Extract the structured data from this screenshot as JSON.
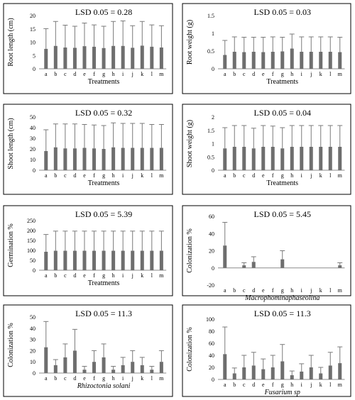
{
  "chart_data": [
    {
      "type": "bar",
      "annotation": "LSD 0.05 = 0.28",
      "ylabel": "Root length (cm)",
      "xlabel": "Treatments",
      "ylim": [
        0,
        20
      ],
      "yticks": [
        "0",
        "5",
        "10",
        "15",
        "20"
      ],
      "categories": [
        "a",
        "b",
        "c",
        "d",
        "e",
        "f",
        "g",
        "h",
        "i",
        "j",
        "k",
        "l",
        "m"
      ],
      "values": [
        7.5,
        8.6,
        8.0,
        7.9,
        8.5,
        8.3,
        7.8,
        8.6,
        8.6,
        7.9,
        8.7,
        8.3,
        8.0
      ],
      "errors": [
        7.6,
        9.2,
        8.4,
        8.1,
        8.7,
        8.2,
        8.2,
        9.2,
        9.4,
        8.3,
        9.1,
        8.2,
        8.2
      ]
    },
    {
      "type": "bar",
      "annotation": "LSD 0.05 = 0.03",
      "ylabel": "Root weight (g)",
      "xlabel": "Treatments",
      "ylim": [
        0,
        1.5
      ],
      "yticks": [
        "0",
        "0.5",
        "1",
        "1.5"
      ],
      "categories": [
        "a",
        "b",
        "c",
        "d",
        "e",
        "f",
        "g",
        "h",
        "i",
        "j",
        "k",
        "l",
        "m"
      ],
      "values": [
        0.39,
        0.48,
        0.47,
        0.48,
        0.47,
        0.48,
        0.49,
        0.57,
        0.48,
        0.48,
        0.48,
        0.48,
        0.47
      ],
      "errors": [
        0.41,
        0.42,
        0.42,
        0.41,
        0.42,
        0.42,
        0.4,
        0.41,
        0.42,
        0.42,
        0.42,
        0.42,
        0.42
      ]
    },
    {
      "type": "bar",
      "annotation": "LSD 0.05 = 0.32",
      "ylabel": "Shoot length (cm)",
      "xlabel": "Treatments",
      "ylim": [
        0,
        50
      ],
      "yticks": [
        "0",
        "10",
        "20",
        "30",
        "40",
        "50"
      ],
      "categories": [
        "a",
        "b",
        "c",
        "d",
        "e",
        "f",
        "g",
        "h",
        "i",
        "j",
        "k",
        "l",
        "m"
      ],
      "values": [
        18,
        21.5,
        20.5,
        20.5,
        21,
        20.5,
        20,
        21.5,
        21,
        21,
        21,
        21,
        21
      ],
      "errors": [
        20,
        22,
        23,
        23,
        22,
        22,
        22,
        23,
        23,
        23,
        23,
        22,
        22
      ]
    },
    {
      "type": "bar",
      "annotation": "LSD 0.05 = 0.04",
      "ylabel": "Shoot weight (g)",
      "xlabel": "Treatments",
      "ylim": [
        0,
        2
      ],
      "yticks": [
        "0",
        "0.5",
        "1",
        "1.5",
        "2"
      ],
      "categories": [
        "a",
        "b",
        "c",
        "d",
        "e",
        "f",
        "g",
        "h",
        "i",
        "j",
        "k",
        "l",
        "m"
      ],
      "values": [
        0.82,
        0.88,
        0.88,
        0.82,
        0.88,
        0.88,
        0.82,
        0.88,
        0.88,
        0.88,
        0.88,
        0.88,
        0.88
      ],
      "errors": [
        0.78,
        0.8,
        0.8,
        0.76,
        0.8,
        0.78,
        0.78,
        0.8,
        0.8,
        0.8,
        0.8,
        0.8,
        0.8
      ]
    },
    {
      "type": "bar",
      "annotation": "LSD 0.05 = 5.39",
      "ylabel": "Germination %",
      "xlabel": "Treatments",
      "ylim": [
        0,
        250
      ],
      "yticks": [
        "0",
        "50",
        "100",
        "150",
        "200",
        "250"
      ],
      "categories": [
        "a",
        "b",
        "c",
        "d",
        "e",
        "f",
        "g",
        "h",
        "i",
        "j",
        "k",
        "l",
        "m"
      ],
      "values": [
        93,
        98,
        98,
        98,
        98,
        98,
        98,
        98,
        98,
        98,
        98,
        98,
        98
      ],
      "errors": [
        87,
        99,
        99,
        99,
        99,
        99,
        99,
        99,
        99,
        99,
        99,
        99,
        99
      ]
    },
    {
      "type": "bar",
      "annotation": "LSD 0.05 = 5.45",
      "ylabel": "Colonization %",
      "xlabel": "Macrophominaphaseolina",
      "xlabel_italic": true,
      "ylim": [
        -20,
        60
      ],
      "yticks": [
        "-20",
        "0",
        "20",
        "40",
        "60"
      ],
      "categories": [
        "a",
        "b",
        "c",
        "d",
        "e",
        "f",
        "g",
        "h",
        "i",
        "j",
        "k",
        "l",
        "m"
      ],
      "values": [
        26,
        0,
        3,
        7,
        0,
        0,
        10,
        0,
        0,
        0,
        0,
        0,
        3
      ],
      "errors": [
        27,
        0,
        3,
        6,
        0,
        0,
        10,
        0,
        0,
        0,
        0,
        0,
        3
      ]
    },
    {
      "type": "bar",
      "annotation": "LSD 0.05 = 11.3",
      "ylabel": "Colonization %",
      "xlabel": "Rhizoctonia solani",
      "xlabel_italic": true,
      "ylim": [
        0,
        50
      ],
      "yticks": [
        "0",
        "10",
        "20",
        "30",
        "40",
        "50"
      ],
      "categories": [
        "a",
        "b",
        "c",
        "d",
        "e",
        "f",
        "g",
        "h",
        "i",
        "j",
        "k",
        "l",
        "m"
      ],
      "values": [
        23,
        7,
        14,
        20,
        3,
        10,
        14,
        3,
        7,
        10,
        7,
        3,
        10
      ],
      "errors": [
        23,
        5,
        12,
        19,
        3,
        10,
        12,
        3,
        7,
        10,
        7,
        3,
        10
      ]
    },
    {
      "type": "bar",
      "annotation": "LSD 0.05 = 11.3",
      "ylabel": "Colonization %",
      "xlabel": "Fusarium sp",
      "xlabel_italic": true,
      "ylim": [
        0,
        100
      ],
      "yticks": [
        "0",
        "20",
        "40",
        "60",
        "80",
        "100"
      ],
      "categories": [
        "a",
        "b",
        "c",
        "d",
        "e",
        "f",
        "g",
        "h",
        "i",
        "j",
        "k",
        "l",
        "m"
      ],
      "values": [
        42,
        10,
        20,
        23,
        17,
        20,
        30,
        7,
        13,
        20,
        10,
        23,
        27
      ],
      "errors": [
        45,
        9,
        20,
        22,
        17,
        20,
        28,
        7,
        13,
        20,
        10,
        22,
        27
      ]
    }
  ]
}
